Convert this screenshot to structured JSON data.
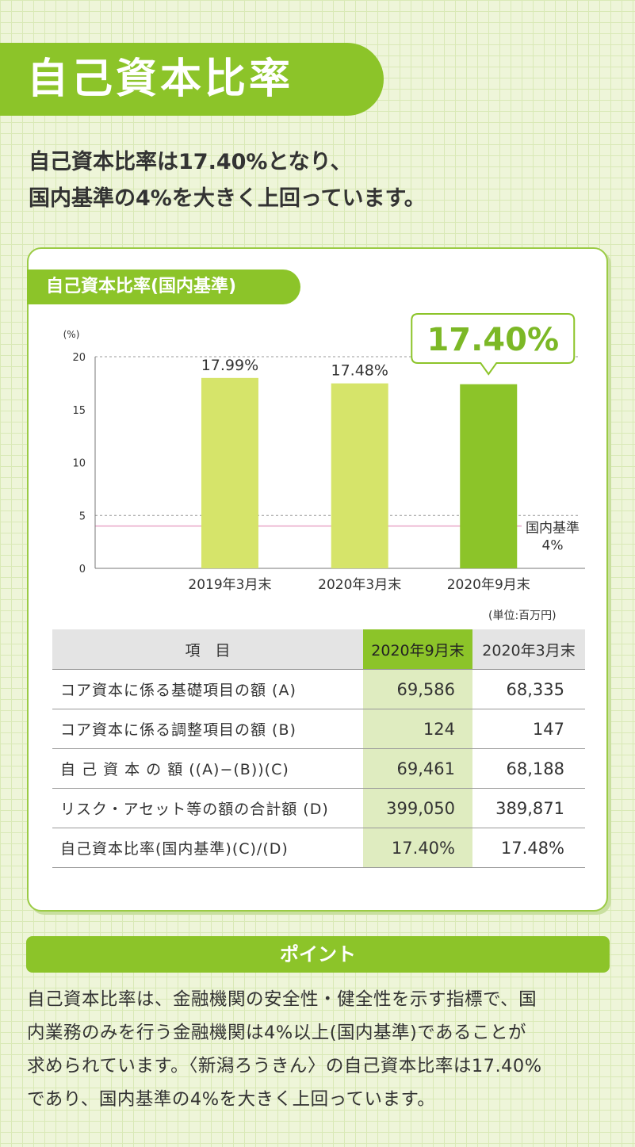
{
  "page_title": "自己資本比率",
  "lead": [
    "自己資本比率は17.40%となり、",
    "国内基準の4%を大きく上回っています。"
  ],
  "card_label": "自己資本比率(国内基準)",
  "chart_data": {
    "type": "bar",
    "categories": [
      "2019年3月末",
      "2020年3月末",
      "2020年9月末"
    ],
    "values": [
      17.99,
      17.48,
      17.4
    ],
    "value_labels": [
      "17.99%",
      "17.48%",
      "17.40%"
    ],
    "bar_colors": [
      "#d6e46a",
      "#d6e46a",
      "#8cc429"
    ],
    "highlight_index": 2,
    "callout_label": "17.40%",
    "yunit": "(%)",
    "ylim": [
      0,
      20
    ],
    "yticks": [
      "0",
      "5",
      "10",
      "15",
      "20"
    ],
    "dashed_gridlines": [
      5,
      20
    ],
    "reference_line": {
      "value": 4,
      "label_lines": [
        "国内基準",
        "4%"
      ],
      "color": "#e9a6c8"
    }
  },
  "table": {
    "unit": "(単位:百万円)",
    "headers": [
      "項　目",
      "2020年9月末",
      "2020年3月末"
    ],
    "rows": [
      {
        "item": "コア資本に係る基礎項目の額 (A)",
        "current": "69,586",
        "previous": "68,335"
      },
      {
        "item": "コア資本に係る調整項目の額 (B)",
        "current": "124",
        "previous": "147"
      },
      {
        "item": "自 己 資 本 の 額 ((A)−(B))(C)",
        "current": "69,461",
        "previous": "68,188"
      },
      {
        "item": "リスク・アセット等の額の合計額 (D)",
        "current": "399,050",
        "previous": "389,871"
      },
      {
        "item": "自己資本比率(国内基準)(C)/(D)",
        "current": "17.40%",
        "previous": "17.48%"
      }
    ]
  },
  "point": {
    "heading": "ポイント",
    "lines": [
      "自己資本比率は、金融機関の安全性・健全性を示す指標で、国",
      "内業務のみを行う金融機関は4%以上(国内基準)であることが",
      "求められています。〈新潟ろうきん〉の自己資本比率は17.40%",
      "であり、国内基準の4%を大きく上回っています。"
    ]
  }
}
